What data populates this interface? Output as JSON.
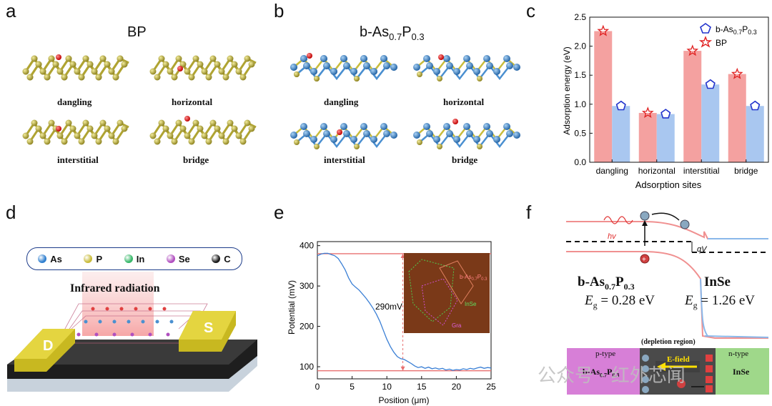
{
  "panels": {
    "a": {
      "label": "a",
      "title": "BP",
      "sites": [
        "dangling",
        "horizontal",
        "interstitial",
        "bridge"
      ]
    },
    "b": {
      "label": "b",
      "title_main": "b-As",
      "title_sub1": "0.7",
      "title_mid": "P",
      "title_sub2": "0.3",
      "sites": [
        "dangling",
        "horizontal",
        "interstitial",
        "bridge"
      ]
    },
    "c": {
      "label": "c"
    },
    "d": {
      "label": "d",
      "legend": [
        "As",
        "P",
        "In",
        "Se",
        "C"
      ],
      "legend_colors": [
        "#2f7fcf",
        "#c9bc3c",
        "#39b86a",
        "#b04fbf",
        "#1b1b1b"
      ],
      "radiation": "Infrared radiation",
      "drain": "D",
      "source": "S"
    },
    "e": {
      "label": "e",
      "inset_labels": {
        "bas_main": "b-As",
        "bas_sub1": "0.7",
        "bas_mid": "P",
        "bas_sub2": "0.3",
        "inse": "InSe",
        "gra": "Gra"
      },
      "annotation": "290mV"
    },
    "f": {
      "label": "f",
      "hv": "hv",
      "qv": "qV",
      "left_mat_main": "b-As",
      "left_mat_sub1": "0.7",
      "left_mat_mid": "P",
      "left_mat_sub2": "0.3",
      "left_eg": "= 0.28 eV",
      "right_mat": "InSe",
      "right_eg": "= 1.26 eV",
      "eg_sym": "E",
      "eg_sub": "g",
      "p_type": "p-type",
      "n_type": "n-type",
      "depletion": "(depletion region)",
      "efield": "E-field",
      "bottom_left_main": "b-As",
      "bottom_left_sub1": "0.7",
      "bottom_left_mid": "P",
      "bottom_left_sub2": "0.3",
      "bottom_right": "InSe"
    }
  },
  "watermark": "公众号 · 红外芯闻",
  "chart_data": [
    {
      "type": "bar",
      "panel": "c",
      "categories": [
        "dangling",
        "horizontal",
        "interstitial",
        "bridge"
      ],
      "series": [
        {
          "name": "BP",
          "values": [
            2.26,
            0.85,
            1.92,
            1.52
          ],
          "color": "#f4a1a0"
        },
        {
          "name": "b-As0.7P0.3",
          "values": [
            0.97,
            0.83,
            1.34,
            0.97
          ],
          "color": "#a9c7f0"
        }
      ],
      "xlabel": "Adsorption sites",
      "ylabel": "Adsorption energy (eV)",
      "ylim": [
        0,
        2.5
      ],
      "yticks": [
        0.0,
        0.5,
        1.0,
        1.5,
        2.0,
        2.5
      ],
      "legend": [
        "b-As0.7P0.3",
        "BP"
      ],
      "legend_position": "top-right"
    },
    {
      "type": "line",
      "panel": "e",
      "x": [
        0,
        0.5,
        1,
        1.5,
        2,
        2.5,
        3,
        3.5,
        4,
        4.5,
        5,
        5.5,
        6,
        6.5,
        7,
        7.5,
        8,
        8.5,
        9,
        9.5,
        10,
        10.5,
        11,
        11.5,
        12,
        12.5,
        13,
        13.5,
        14,
        14.5,
        15,
        15.5,
        16,
        16.5,
        17,
        17.5,
        18,
        18.5,
        19,
        19.5,
        20,
        20.5,
        21,
        21.5,
        22,
        22.5,
        23,
        23.5,
        24,
        24.5,
        25
      ],
      "y": [
        375,
        379,
        381,
        381,
        378,
        375,
        368,
        355,
        340,
        320,
        305,
        297,
        290,
        280,
        270,
        258,
        245,
        230,
        212,
        190,
        168,
        150,
        136,
        125,
        120,
        118,
        113,
        108,
        102,
        98,
        100,
        96,
        99,
        95,
        97,
        94,
        96,
        92,
        94,
        91,
        93,
        92,
        95,
        93,
        96,
        94,
        97,
        99,
        96,
        98,
        97
      ],
      "series_color": "#3a7fd5",
      "xlabel": "Position (μm)",
      "ylabel": "Potential (mV)",
      "xlim": [
        0,
        25
      ],
      "ylim": [
        70,
        410
      ],
      "xticks": [
        0,
        5,
        10,
        15,
        20,
        25
      ],
      "yticks": [
        100,
        200,
        300,
        400
      ],
      "reference_lines": [
        380,
        90
      ],
      "marker_x": 12.3
    }
  ]
}
